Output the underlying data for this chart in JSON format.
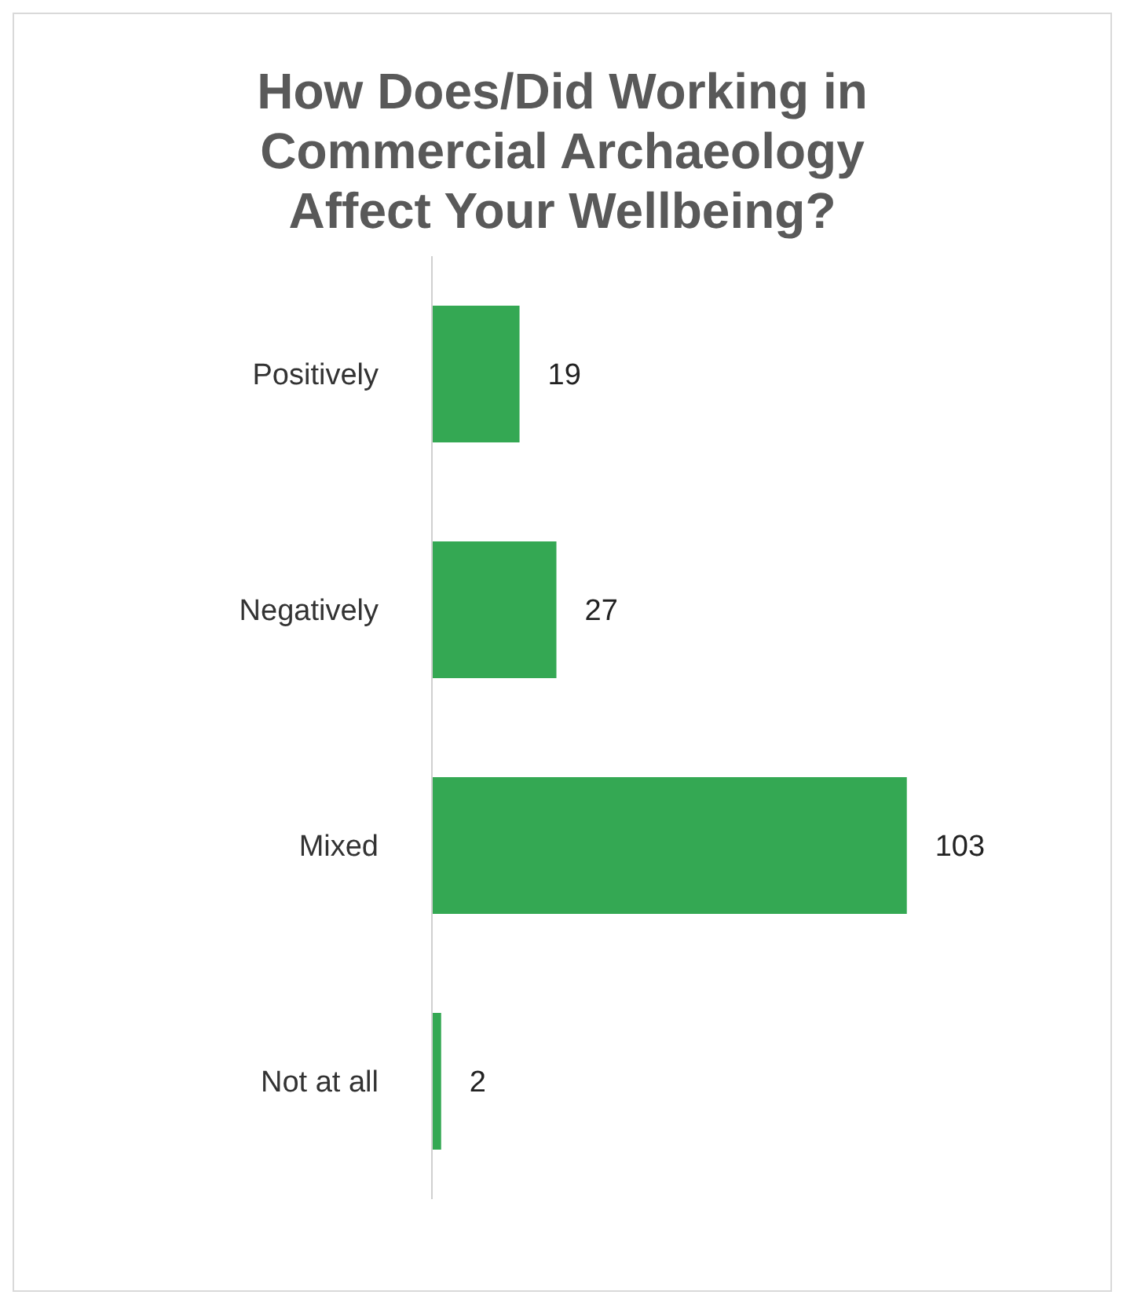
{
  "chart_data": {
    "type": "bar",
    "orientation": "horizontal",
    "title": "How Does/Did Working in Commercial Archaeology Affect Your Wellbeing?",
    "categories": [
      "Positively",
      "Negatively",
      "Mixed",
      "Not at all"
    ],
    "values": [
      19,
      27,
      103,
      2
    ],
    "color": "#34a853",
    "data_labels": true,
    "tick_labels": "y"
  }
}
